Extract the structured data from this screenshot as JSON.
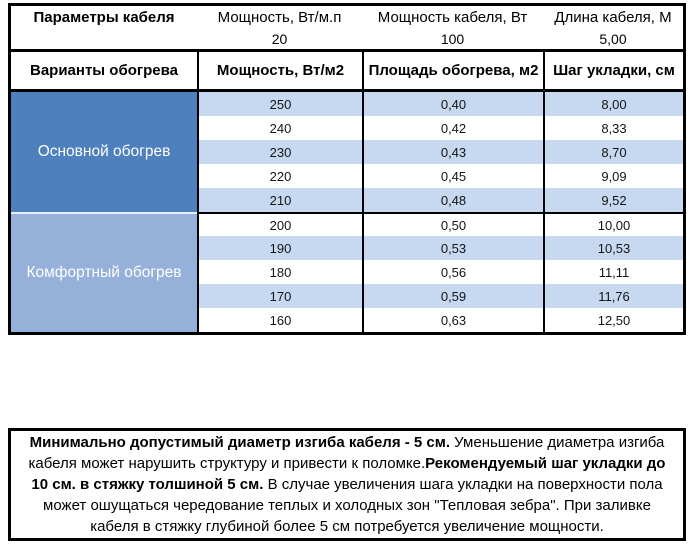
{
  "params_table": {
    "title": "Параметры кабеля",
    "power_per_m_label": "Мощность, Вт/м.п",
    "power_per_m_value": "20",
    "cable_power_label": "Мощность кабеля, Вт",
    "cable_power_value": "100",
    "cable_length_label": "Длина кабеля, М",
    "cable_length_value": "5,00"
  },
  "heating_table": {
    "headers": [
      "Варианты обогрева",
      "Мощность, Вт/м2",
      "Площадь обогрева, м2",
      "Шаг укладки, см"
    ],
    "sections": [
      {
        "name": "Основной обогрев",
        "color": "#4e80bd",
        "rows": [
          [
            "250",
            "0,40",
            "8,00"
          ],
          [
            "240",
            "0,42",
            "8,33"
          ],
          [
            "230",
            "0,43",
            "8,70"
          ],
          [
            "220",
            "0,45",
            "9,09"
          ],
          [
            "210",
            "0,48",
            "9,52"
          ]
        ]
      },
      {
        "name": "Комфортный обогрев",
        "color": "#95b1da",
        "rows": [
          [
            "200",
            "0,50",
            "10,00"
          ],
          [
            "190",
            "0,53",
            "10,53"
          ],
          [
            "180",
            "0,56",
            "11,11"
          ],
          [
            "170",
            "0,59",
            "11,76"
          ],
          [
            "160",
            "0,63",
            "12,50"
          ]
        ]
      }
    ],
    "stripe_color": "#c7d9f0"
  },
  "note": {
    "segments": [
      {
        "bold": true,
        "text": "Минимально допустимый диаметр изгиба кабеля - 5 см."
      },
      {
        "bold": false,
        "text": "  Уменьшение диаметра изгиба кабеля может нарушить структуру и привести к поломке."
      },
      {
        "bold": true,
        "text": "Рекомендуемый шаг укладки до 10 см. в стяжку толшиной 5 см."
      },
      {
        "bold": false,
        "text": " В  случае увеличения шага укладки на поверхности пола может ошущаться чередование теплых и холодных зон \"Тепловая зебра\". При заливке кабеля в стяжку глубиной более 5 см потребуется увеличение мощности."
      }
    ]
  }
}
